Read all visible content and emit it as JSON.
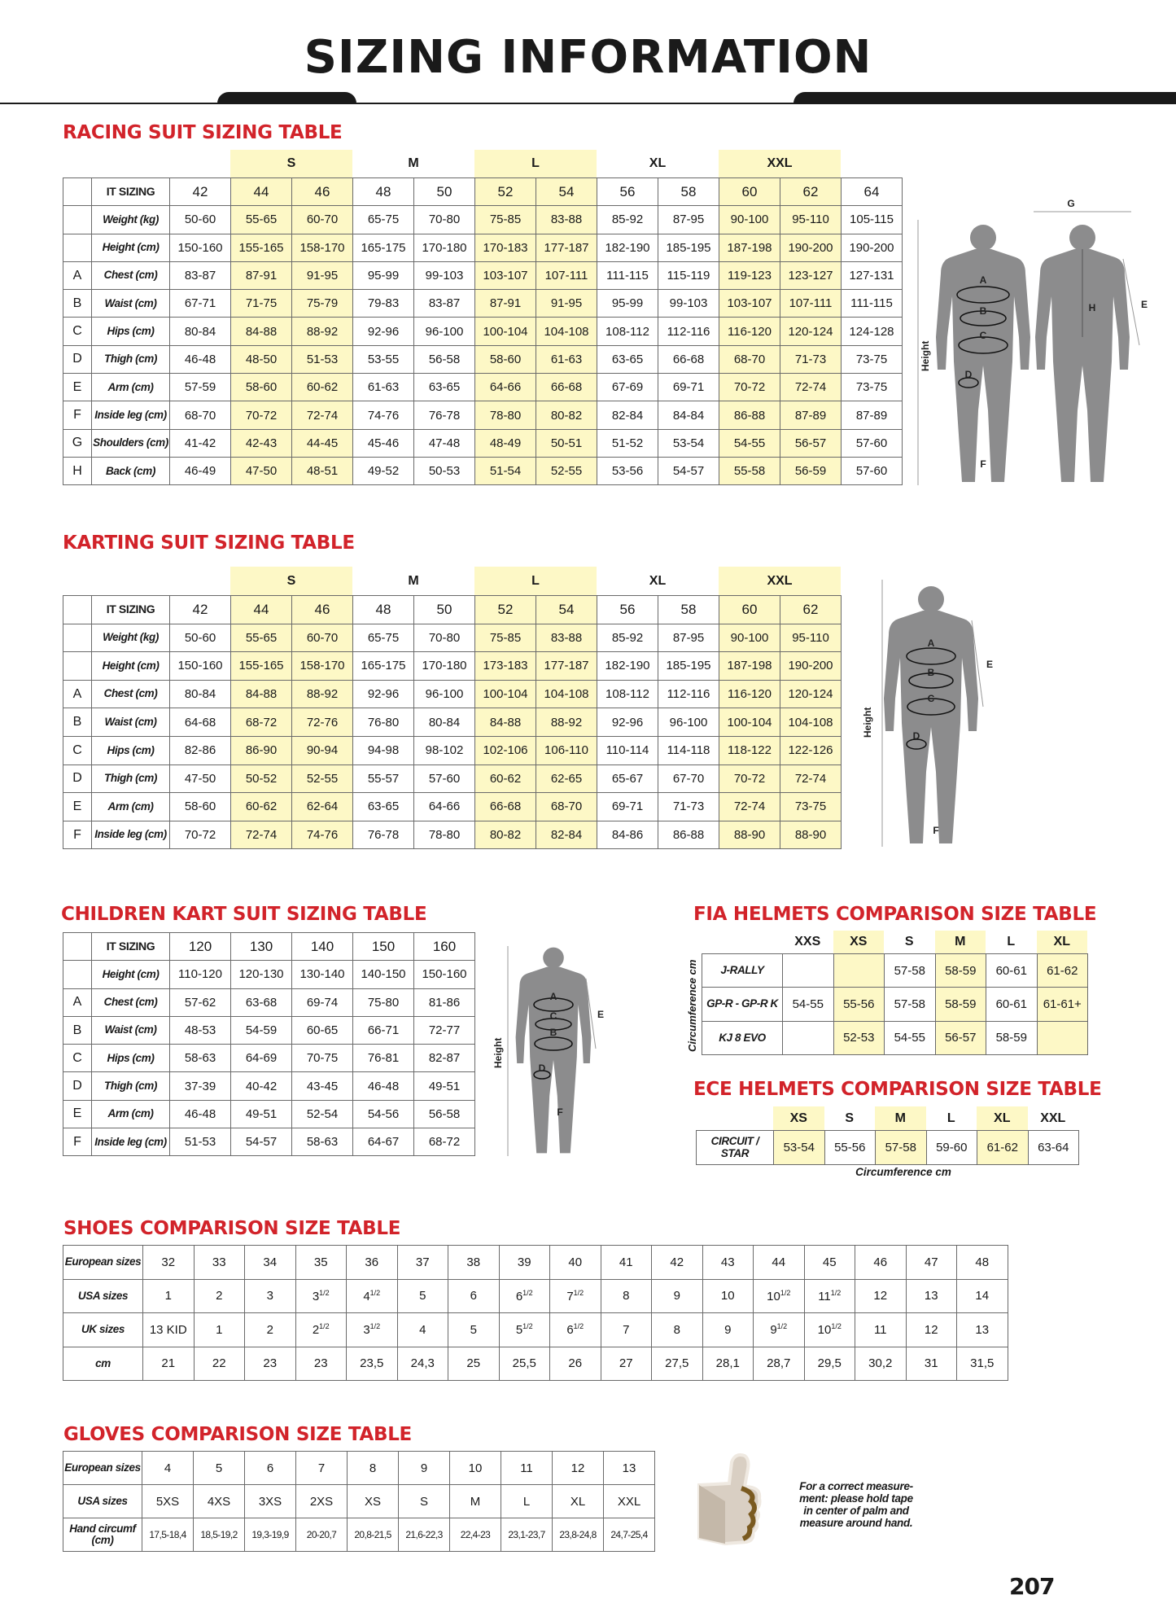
{
  "page_title": "SIZING INFORMATION",
  "page_number": "207",
  "colors": {
    "accent_red": "#d2232a",
    "highlight_yellow": "#fdf8c6",
    "figure_gray": "#8c8c8d"
  },
  "racing": {
    "title": "RACING SUIT SIZING TABLE",
    "size_groups": [
      {
        "label": "",
        "span": 1
      },
      {
        "label": "S",
        "span": 2,
        "highlight": true
      },
      {
        "label": "M",
        "span": 2
      },
      {
        "label": "L",
        "span": 2,
        "highlight": true
      },
      {
        "label": "XL",
        "span": 2
      },
      {
        "label": "XXL",
        "span": 2,
        "highlight": true
      },
      {
        "label": "",
        "span": 1
      }
    ],
    "header": {
      "label": "IT SIZING",
      "values": [
        "42",
        "44",
        "46",
        "48",
        "50",
        "52",
        "54",
        "56",
        "58",
        "60",
        "62",
        "64"
      ]
    },
    "rows": [
      {
        "letter": "",
        "label": "Weight (kg)",
        "values": [
          "50-60",
          "55-65",
          "60-70",
          "65-75",
          "70-80",
          "75-85",
          "83-88",
          "85-92",
          "87-95",
          "90-100",
          "95-110",
          "105-115"
        ]
      },
      {
        "letter": "",
        "label": "Height (cm)",
        "values": [
          "150-160",
          "155-165",
          "158-170",
          "165-175",
          "170-180",
          "170-183",
          "177-187",
          "182-190",
          "185-195",
          "187-198",
          "190-200",
          "190-200"
        ]
      },
      {
        "letter": "A",
        "label": "Chest (cm)",
        "values": [
          "83-87",
          "87-91",
          "91-95",
          "95-99",
          "99-103",
          "103-107",
          "107-111",
          "111-115",
          "115-119",
          "119-123",
          "123-127",
          "127-131"
        ]
      },
      {
        "letter": "B",
        "label": "Waist (cm)",
        "values": [
          "67-71",
          "71-75",
          "75-79",
          "79-83",
          "83-87",
          "87-91",
          "91-95",
          "95-99",
          "99-103",
          "103-107",
          "107-111",
          "111-115"
        ]
      },
      {
        "letter": "C",
        "label": "Hips (cm)",
        "values": [
          "80-84",
          "84-88",
          "88-92",
          "92-96",
          "96-100",
          "100-104",
          "104-108",
          "108-112",
          "112-116",
          "116-120",
          "120-124",
          "124-128"
        ]
      },
      {
        "letter": "D",
        "label": "Thigh (cm)",
        "values": [
          "46-48",
          "48-50",
          "51-53",
          "53-55",
          "56-58",
          "58-60",
          "61-63",
          "63-65",
          "66-68",
          "68-70",
          "71-73",
          "73-75"
        ]
      },
      {
        "letter": "E",
        "label": "Arm (cm)",
        "values": [
          "57-59",
          "58-60",
          "60-62",
          "61-63",
          "63-65",
          "64-66",
          "66-68",
          "67-69",
          "69-71",
          "70-72",
          "72-74",
          "73-75"
        ]
      },
      {
        "letter": "F",
        "label": "Inside leg (cm)",
        "values": [
          "68-70",
          "70-72",
          "72-74",
          "74-76",
          "76-78",
          "78-80",
          "80-82",
          "82-84",
          "84-84",
          "86-88",
          "87-89",
          "87-89"
        ]
      },
      {
        "letter": "G",
        "label": "Shoulders (cm)",
        "values": [
          "41-42",
          "42-43",
          "44-45",
          "45-46",
          "47-48",
          "48-49",
          "50-51",
          "51-52",
          "53-54",
          "54-55",
          "56-57",
          "57-60"
        ]
      },
      {
        "letter": "H",
        "label": "Back (cm)",
        "values": [
          "46-49",
          "47-50",
          "48-51",
          "49-52",
          "50-53",
          "51-54",
          "52-55",
          "53-56",
          "54-57",
          "55-58",
          "56-59",
          "57-60"
        ]
      }
    ],
    "figure": {
      "height_label": "Height",
      "labels": [
        "A",
        "B",
        "C",
        "D",
        "E",
        "F",
        "G",
        "H"
      ]
    }
  },
  "karting": {
    "title": "KARTING SUIT SIZING TABLE",
    "size_groups": [
      {
        "label": "",
        "span": 1
      },
      {
        "label": "S",
        "span": 2,
        "highlight": true
      },
      {
        "label": "M",
        "span": 2
      },
      {
        "label": "L",
        "span": 2,
        "highlight": true
      },
      {
        "label": "XL",
        "span": 2
      },
      {
        "label": "XXL",
        "span": 2,
        "highlight": true
      }
    ],
    "header": {
      "label": "IT SIZING",
      "values": [
        "42",
        "44",
        "46",
        "48",
        "50",
        "52",
        "54",
        "56",
        "58",
        "60",
        "62"
      ]
    },
    "rows": [
      {
        "letter": "",
        "label": "Weight (kg)",
        "values": [
          "50-60",
          "55-65",
          "60-70",
          "65-75",
          "70-80",
          "75-85",
          "83-88",
          "85-92",
          "87-95",
          "90-100",
          "95-110"
        ]
      },
      {
        "letter": "",
        "label": "Height (cm)",
        "values": [
          "150-160",
          "155-165",
          "158-170",
          "165-175",
          "170-180",
          "173-183",
          "177-187",
          "182-190",
          "185-195",
          "187-198",
          "190-200"
        ]
      },
      {
        "letter": "A",
        "label": "Chest (cm)",
        "values": [
          "80-84",
          "84-88",
          "88-92",
          "92-96",
          "96-100",
          "100-104",
          "104-108",
          "108-112",
          "112-116",
          "116-120",
          "120-124"
        ]
      },
      {
        "letter": "B",
        "label": "Waist (cm)",
        "values": [
          "64-68",
          "68-72",
          "72-76",
          "76-80",
          "80-84",
          "84-88",
          "88-92",
          "92-96",
          "96-100",
          "100-104",
          "104-108"
        ]
      },
      {
        "letter": "C",
        "label": "Hips (cm)",
        "values": [
          "82-86",
          "86-90",
          "90-94",
          "94-98",
          "98-102",
          "102-106",
          "106-110",
          "110-114",
          "114-118",
          "118-122",
          "122-126"
        ]
      },
      {
        "letter": "D",
        "label": "Thigh (cm)",
        "values": [
          "47-50",
          "50-52",
          "52-55",
          "55-57",
          "57-60",
          "60-62",
          "62-65",
          "65-67",
          "67-70",
          "70-72",
          "72-74"
        ]
      },
      {
        "letter": "E",
        "label": "Arm (cm)",
        "values": [
          "58-60",
          "60-62",
          "62-64",
          "63-65",
          "64-66",
          "66-68",
          "68-70",
          "69-71",
          "71-73",
          "72-74",
          "73-75"
        ]
      },
      {
        "letter": "F",
        "label": "Inside leg (cm)",
        "values": [
          "70-72",
          "72-74",
          "74-76",
          "76-78",
          "78-80",
          "80-82",
          "82-84",
          "84-86",
          "86-88",
          "88-90",
          "88-90"
        ]
      }
    ],
    "figure": {
      "height_label": "Height",
      "labels": [
        "A",
        "B",
        "C",
        "D",
        "E",
        "F"
      ]
    }
  },
  "children": {
    "title": "CHILDREN KART SUIT SIZING TABLE",
    "header": {
      "label": "IT SIZING",
      "values": [
        "120",
        "130",
        "140",
        "150",
        "160"
      ]
    },
    "rows": [
      {
        "letter": "",
        "label": "Height (cm)",
        "values": [
          "110-120",
          "120-130",
          "130-140",
          "140-150",
          "150-160"
        ]
      },
      {
        "letter": "A",
        "label": "Chest (cm)",
        "values": [
          "57-62",
          "63-68",
          "69-74",
          "75-80",
          "81-86"
        ]
      },
      {
        "letter": "B",
        "label": "Waist (cm)",
        "values": [
          "48-53",
          "54-59",
          "60-65",
          "66-71",
          "72-77"
        ]
      },
      {
        "letter": "C",
        "label": "Hips (cm)",
        "values": [
          "58-63",
          "64-69",
          "70-75",
          "76-81",
          "82-87"
        ]
      },
      {
        "letter": "D",
        "label": "Thigh (cm)",
        "values": [
          "37-39",
          "40-42",
          "43-45",
          "46-48",
          "49-51"
        ]
      },
      {
        "letter": "E",
        "label": "Arm (cm)",
        "values": [
          "46-48",
          "49-51",
          "52-54",
          "54-56",
          "56-58"
        ]
      },
      {
        "letter": "F",
        "label": "Inside leg (cm)",
        "values": [
          "51-53",
          "54-57",
          "58-63",
          "64-67",
          "68-72"
        ]
      }
    ],
    "figure": {
      "height_label": "Height",
      "labels": [
        "A",
        "B",
        "C",
        "D",
        "E",
        "F"
      ]
    }
  },
  "fia_helmets": {
    "title": "FIA HELMETS COMPARISON SIZE TABLE",
    "axis_label": "Circumference cm",
    "sizes": [
      {
        "label": "XXS"
      },
      {
        "label": "XS",
        "highlight": true
      },
      {
        "label": "S"
      },
      {
        "label": "M",
        "highlight": true
      },
      {
        "label": "L"
      },
      {
        "label": "XL",
        "highlight": true
      }
    ],
    "rows": [
      {
        "label": "J-RALLY",
        "values": [
          "",
          "",
          "57-58",
          "58-59",
          "60-61",
          "61-62"
        ]
      },
      {
        "label": "GP-R - GP-R K",
        "values": [
          "54-55",
          "55-56",
          "57-58",
          "58-59",
          "60-61",
          "61-61+"
        ]
      },
      {
        "label": "KJ 8 EVO",
        "values": [
          "",
          "52-53",
          "54-55",
          "56-57",
          "58-59",
          ""
        ]
      }
    ]
  },
  "ece_helmets": {
    "title": "ECE HELMETS COMPARISON SIZE TABLE",
    "axis_label": "Circumference cm",
    "sizes": [
      {
        "label": "XS",
        "highlight": true
      },
      {
        "label": "S"
      },
      {
        "label": "M",
        "highlight": true
      },
      {
        "label": "L"
      },
      {
        "label": "XL",
        "highlight": true
      },
      {
        "label": "XXL"
      }
    ],
    "rows": [
      {
        "label": "CIRCUIT / STAR",
        "values": [
          "53-54",
          "55-56",
          "57-58",
          "59-60",
          "61-62",
          "63-64"
        ]
      }
    ]
  },
  "shoes": {
    "title": "SHOES COMPARISON SIZE TABLE",
    "rows": [
      {
        "label": "European sizes",
        "values": [
          "32",
          "33",
          "34",
          "35",
          "36",
          "37",
          "38",
          "39",
          "40",
          "41",
          "42",
          "43",
          "44",
          "45",
          "46",
          "47",
          "48"
        ]
      },
      {
        "label": "USA sizes",
        "values": [
          "1",
          "2",
          "3",
          "3 1/2",
          "4 1/2",
          "5",
          "6",
          "6 1/2",
          "7 1/2",
          "8",
          "9",
          "10",
          "10 1/2",
          "11 1/2",
          "12",
          "13",
          "14"
        ]
      },
      {
        "label": "UK sizes",
        "values": [
          "13 KID",
          "1",
          "2",
          "2 1/2",
          "3 1/2",
          "4",
          "5",
          "5 1/2",
          "6 1/2",
          "7",
          "8",
          "9",
          "9 1/2",
          "10 1/2",
          "11",
          "12",
          "13"
        ]
      },
      {
        "label": "cm",
        "values": [
          "21",
          "22",
          "23",
          "23",
          "23,5",
          "24,3",
          "25",
          "25,5",
          "26",
          "27",
          "27,5",
          "28,1",
          "28,7",
          "29,5",
          "30,2",
          "31",
          "31,5"
        ]
      }
    ]
  },
  "gloves": {
    "title": "GLOVES COMPARISON SIZE TABLE",
    "rows": [
      {
        "label": "European sizes",
        "values": [
          "4",
          "5",
          "6",
          "7",
          "8",
          "9",
          "10",
          "11",
          "12",
          "13"
        ]
      },
      {
        "label": "USA sizes",
        "values": [
          "5XS",
          "4XS",
          "3XS",
          "2XS",
          "XS",
          "S",
          "M",
          "L",
          "XL",
          "XXL"
        ]
      },
      {
        "label": "Hand circumf (cm)",
        "values": [
          "17,5-18,4",
          "18,5-19,2",
          "19,3-19,9",
          "20-20,7",
          "20,8-21,5",
          "21,6-22,3",
          "22,4-23",
          "23,1-23,7",
          "23,8-24,8",
          "24,7-25,4"
        ]
      }
    ],
    "note": "For a correct measure-ment: please hold tape in center of palm and measure around hand."
  }
}
